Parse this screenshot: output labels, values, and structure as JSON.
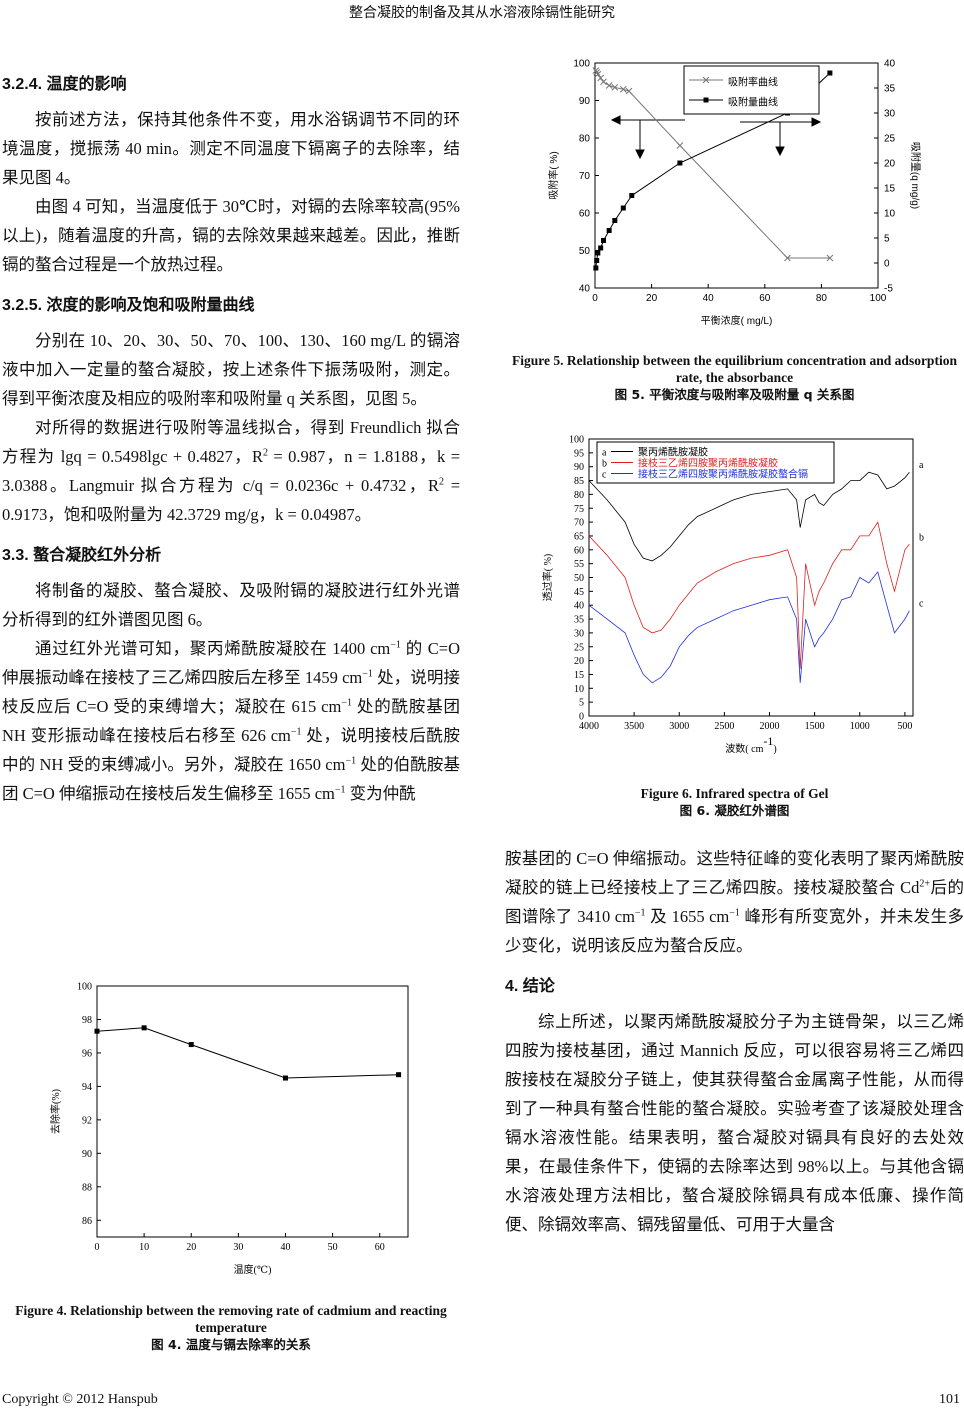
{
  "document": {
    "header": "整合凝胶的制备及其从水溶液除镉性能研究",
    "left": [
      {
        "heading": "3.2.4.  温度的影响"
      },
      {
        "paragraph": [
          "按前述方法，保持其他条件不变，用水浴锅调节不同的环境温度，搅振荡 40 min。测定不同温度下镉离子的去除率，结果见图 4。"
        ]
      },
      {
        "paragraph": [
          "由图 4 可知，当温度低于 30℃时，对镉的去除率较高(95%以上)，随着温度的升高，镉的去除效果越来越差。因此，推断镉的螯合过程是一个放热过程。"
        ]
      },
      {
        "heading": "3.2.5.  浓度的影响及饱和吸附量曲线"
      },
      {
        "paragraph": [
          "分别在 10、20、30、50、70、100、130、160 mg/L 的镉溶液中加入一定量的螯合凝胶，按上述条件下振荡吸附，测定。得到平衡浓度及相应的吸附率和吸附量 q 关系图，见图 5。"
        ]
      },
      {
        "paragraph": [
          "对所得的数据进行吸附等温线拟合，得到 Freundlich 拟合方程为 lgq = 0.5498lgc + 0.4827，R",
          {
            "sup": "2"
          },
          " = 0.987，n = 1.8188，k = 3.0388。Langmuir 拟合方程为 c/q = 0.0236c + 0.4732，R",
          {
            "sup": "2"
          },
          " = 0.9173，饱和吸附量为 42.3729 mg/g，k = 0.04987。"
        ]
      },
      {
        "heading": "3.3.  螯合凝胶红外分析"
      },
      {
        "paragraph": [
          "将制备的凝胶、螯合凝胶、及吸附镉的凝胶进行红外光谱分析得到的红外谱图见图 6。"
        ]
      },
      {
        "paragraph": [
          "通过红外光谱可知，聚丙烯酰胺凝胶在 1400 cm",
          {
            "sup": "−1"
          },
          " 的 C=O 伸展振动峰在接枝了三乙烯四胺后左移至 1459 cm",
          {
            "sup": "−1"
          },
          " 处，说明接枝反应后 C=O 受的束缚增大；凝胶在 615 cm",
          {
            "sup": "−1"
          },
          " 处的酰胺基团 NH 变形振动峰在接枝后右移至 626 cm",
          {
            "sup": "−1"
          },
          " 处，说明接枝后酰胺中的 NH 受的束缚减小。另外，凝胶在 1650 cm",
          {
            "sup": "−1"
          },
          " 处的伯酰胺基团 C=O 伸缩振动在接枝后发生偏移至 1655 cm",
          {
            "sup": "−1"
          },
          " 变为仲酰"
        ]
      }
    ],
    "right": [
      {
        "paragraph": [
          "胺基团的 C=O 伸缩振动。这些特征峰的变化表明了聚丙烯酰胺凝胶的链上已经接枝上了三乙烯四胺。接枝凝胶螯合 Cd",
          {
            "sup": "2+"
          },
          "后的图谱除了 3410 cm",
          {
            "sup": "−1"
          },
          " 及 1655 cm",
          {
            "sup": "−1"
          },
          " 峰形有所变宽外，并未发生多少变化，说明该反应为螯合反应。"
        ],
        "continued": true
      },
      {
        "heading": "4.  结论"
      },
      {
        "paragraph": [
          "综上所述，以聚丙烯酰胺凝胶分子为主链骨架，以三乙烯四胺为接枝基团，通过 Mannich 反应，可以很容易将三乙烯四胺接枝在凝胶分子链上，使其获得螯合金属离子性能，从而得到了一种具有螯合性能的螯合凝胶。实验考查了该凝胶处理含镉水溶液性能。结果表明，螯合凝胶对镉具有良好的去处效果，在最佳条件下，使镉的去除率达到 98%以上。与其他含镉水溶液处理方法相比，螯合凝胶除镉具有成本低廉、操作简便、除镉效率高、镉残留量低、可用于大量含"
        ]
      }
    ],
    "footer": {
      "copyright": "Copyright © 2012 Hanspub",
      "page": "101"
    }
  },
  "chart_data": [
    {
      "type": "line",
      "caption_en": "Figure 5. Relationship between the equilibrium concentration and adsorption rate, the absorbance",
      "caption_cn": "图 5.  平衡浓度与吸附率及吸附量 q 关系图",
      "xlabel": [
        "平衡浓度(   mg/L)"
      ],
      "ylabel": [
        "吸附率(  %)"
      ],
      "y2label": [
        "吸附量(q   mg/g)"
      ],
      "xlim": [
        0,
        100
      ],
      "xticks": [
        0,
        20,
        40,
        60,
        80,
        100
      ],
      "ylim": [
        40,
        100
      ],
      "yticks": [
        40,
        50,
        60,
        70,
        80,
        90,
        100
      ],
      "y2lim": [
        -5,
        40
      ],
      "y2ticks": [
        -5,
        0,
        5,
        10,
        15,
        20,
        25,
        30,
        35,
        40
      ],
      "legend": "upper center",
      "series": [
        {
          "name": "吸附率曲线",
          "color": "#777777",
          "marker": "x",
          "x": [
            0.3,
            0.6,
            1,
            2,
            3,
            5,
            7,
            10,
            12,
            30,
            68,
            83
          ],
          "values": [
            98,
            97.5,
            97,
            96,
            95,
            94,
            93.5,
            93,
            92.5,
            78,
            48,
            48
          ]
        },
        {
          "name": "吸附量曲线",
          "color": "#000000",
          "marker": "square",
          "axis": "y2",
          "x": [
            0.3,
            0.6,
            1,
            2,
            3,
            5,
            7,
            10,
            13,
            30,
            68,
            83
          ],
          "values": [
            -1,
            0.5,
            2,
            3,
            4.5,
            6.5,
            8.5,
            11,
            13.5,
            20,
            30,
            38
          ]
        }
      ]
    },
    {
      "type": "line",
      "caption_en": "Figure 6. Infrared spectra of Gel",
      "caption_cn": "图 6.  凝胶红外谱图",
      "xlabel": [
        "波数(  cm",
        {
          "sup": "-1"
        },
        ")"
      ],
      "ylabel": [
        "透过率(  %)"
      ],
      "xlim": [
        4000,
        410
      ],
      "xticks": [
        4000,
        3500,
        3000,
        2500,
        2000,
        1500,
        1000,
        500
      ],
      "ylim": [
        0,
        100
      ],
      "yticks": [
        0,
        5,
        10,
        15,
        20,
        25,
        30,
        35,
        40,
        45,
        50,
        55,
        60,
        65,
        70,
        75,
        80,
        85,
        90,
        95,
        100
      ],
      "legend": "upper left",
      "x": [
        4000,
        3800,
        3600,
        3500,
        3400,
        3300,
        3200,
        3100,
        3000,
        2900,
        2800,
        2600,
        2400,
        2200,
        2000,
        1800,
        1700,
        1660,
        1600,
        1500,
        1450,
        1400,
        1300,
        1200,
        1100,
        1000,
        900,
        800,
        700,
        615,
        500,
        450
      ],
      "series": [
        {
          "label": "a",
          "name": "聚丙烯酰胺凝胶",
          "color": "#000000",
          "marker": "none",
          "values": [
            85,
            78,
            70,
            62,
            57,
            56,
            58,
            61,
            65,
            69,
            72,
            75,
            78,
            80,
            81,
            82,
            78,
            68,
            78,
            80,
            77,
            76,
            80,
            82,
            85,
            85,
            88,
            87,
            82,
            83,
            86,
            88
          ]
        },
        {
          "label": "b",
          "name": "接枝三乙烯四胺聚丙烯酰胺凝胶",
          "color": "#e02020",
          "marker": "none",
          "values": [
            65,
            58,
            50,
            40,
            32,
            30,
            31,
            35,
            40,
            44,
            48,
            52,
            55,
            57,
            58,
            60,
            50,
            17,
            55,
            40,
            45,
            48,
            55,
            60,
            60,
            65,
            65,
            70,
            55,
            45,
            60,
            62
          ]
        },
        {
          "label": "c",
          "name": "接枝三乙烯四胺聚丙烯酰胺凝胶螯合镉",
          "color": "#2030e0",
          "marker": "none",
          "values": [
            40,
            35,
            30,
            22,
            15,
            12,
            14,
            18,
            25,
            29,
            32,
            35,
            38,
            40,
            42,
            43,
            35,
            12,
            35,
            25,
            28,
            30,
            35,
            42,
            43,
            50,
            48,
            52,
            40,
            30,
            35,
            38
          ]
        }
      ]
    },
    {
      "type": "line",
      "caption_en": "Figure 4. Relationship between the removing rate of cadmium and reacting temperature",
      "caption_cn": "图 4.  温度与镉去除率的关系",
      "xlabel": [
        "温度(℃)"
      ],
      "ylabel": [
        "去除率(%)"
      ],
      "xlim": [
        0,
        66
      ],
      "xticks": [
        0,
        10,
        20,
        30,
        40,
        50,
        60
      ],
      "ylim": [
        85,
        100
      ],
      "yticks": [
        86,
        88,
        90,
        92,
        94,
        96,
        98,
        100
      ],
      "series": [
        {
          "color": "#000000",
          "marker": "square",
          "x": [
            0,
            10,
            20,
            40,
            64
          ],
          "values": [
            97.3,
            97.5,
            96.5,
            94.5,
            94.7
          ]
        }
      ]
    }
  ]
}
